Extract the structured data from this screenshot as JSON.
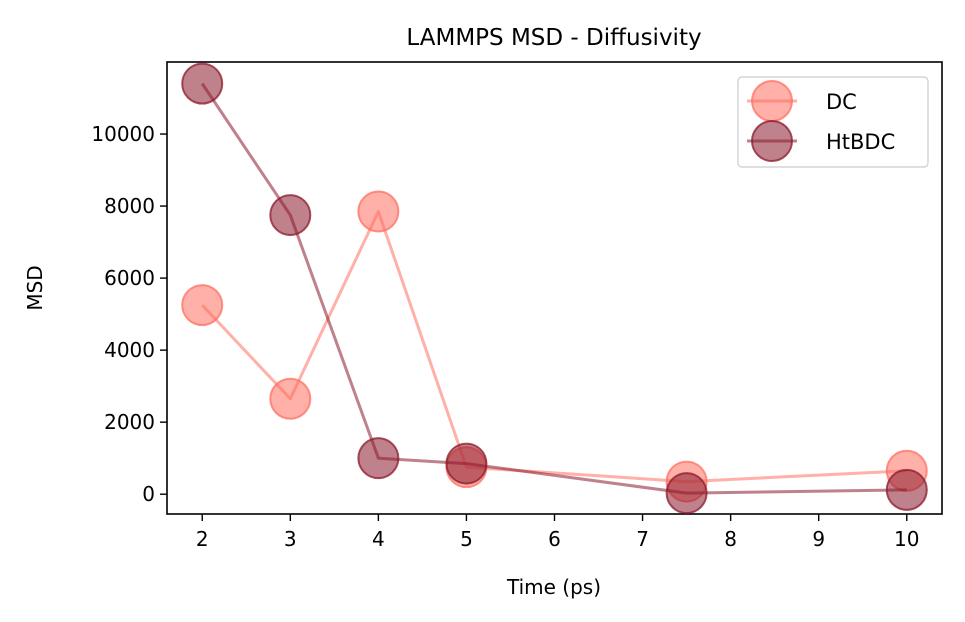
{
  "chart_data": {
    "type": "line",
    "title": "LAMMPS MSD - Diffusivity",
    "xlabel": "Time (ps)",
    "ylabel": "MSD",
    "xlim": [
      1.6,
      10.4
    ],
    "ylim": [
      -550,
      12000
    ],
    "xticks": [
      2,
      3,
      4,
      5,
      6,
      7,
      8,
      9,
      10
    ],
    "xtick_labels": [
      "2",
      "3",
      "4",
      "5",
      "6",
      "7",
      "8",
      "9",
      "10"
    ],
    "yticks": [
      0,
      2000,
      4000,
      6000,
      8000,
      10000
    ],
    "ytick_labels": [
      "0",
      "2000",
      "4000",
      "6000",
      "8000",
      "10000"
    ],
    "grid": false,
    "legend_position": "top-right",
    "x": [
      2,
      3,
      4,
      5,
      7.5,
      10
    ],
    "series": [
      {
        "name": "DC",
        "color": "#ff6f61",
        "alpha": 0.55,
        "values": [
          5250,
          2650,
          7850,
          750,
          350,
          650
        ]
      },
      {
        "name": "HtBDC",
        "color": "#8b1a2b",
        "alpha": 0.55,
        "values": [
          11400,
          7750,
          1000,
          850,
          30,
          120
        ]
      }
    ]
  }
}
